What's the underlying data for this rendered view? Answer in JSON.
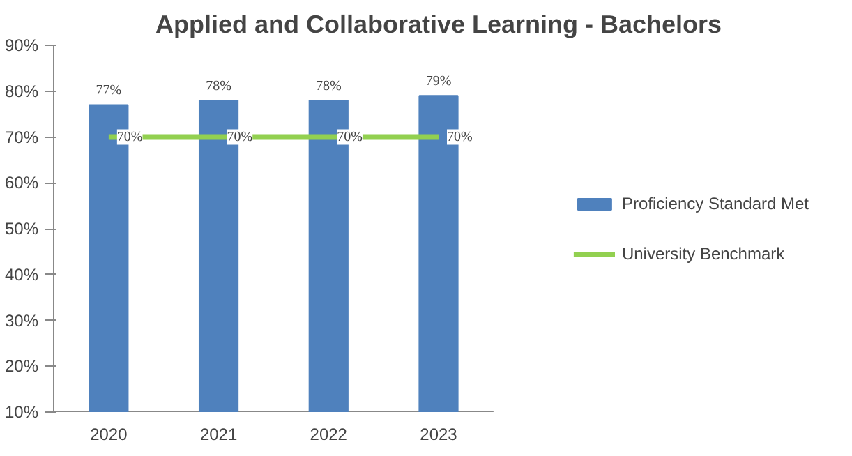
{
  "chart_data": {
    "type": "bar",
    "title": "Applied and Collaborative Learning - Bachelors",
    "categories": [
      "2020",
      "2021",
      "2022",
      "2023"
    ],
    "series": [
      {
        "name": "Proficiency Standard Met",
        "color": "#4f81bd",
        "values": [
          77,
          78,
          78,
          79
        ],
        "value_labels": [
          "77%",
          "78%",
          "78%",
          "79%"
        ]
      },
      {
        "name": "University Benchmark",
        "type": "line",
        "color": "#92d050",
        "values": [
          70,
          70,
          70,
          70
        ],
        "value_labels": [
          "70%",
          "70%",
          "70%",
          "70%"
        ]
      }
    ],
    "ylim": [
      10,
      90
    ],
    "yticks": [
      {
        "value": 10,
        "label": "10%"
      },
      {
        "value": 20,
        "label": "20%"
      },
      {
        "value": 30,
        "label": "30%"
      },
      {
        "value": 40,
        "label": "40%"
      },
      {
        "value": 50,
        "label": "50%"
      },
      {
        "value": 60,
        "label": "60%"
      },
      {
        "value": 70,
        "label": "70%"
      },
      {
        "value": 80,
        "label": "80%"
      },
      {
        "value": 90,
        "label": "90%"
      }
    ],
    "grid": false,
    "legend": "right",
    "marker": "none",
    "line_style": "solid"
  }
}
